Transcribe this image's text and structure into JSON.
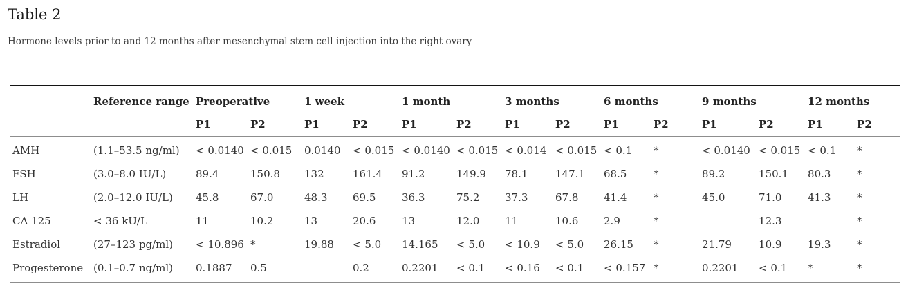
{
  "title": "Table 2",
  "caption": "Hormone levels prior to and 12 months after mesenchymal stem cell injection into the right ovary",
  "table": {
    "reference_header": "Reference range",
    "sub_headers": [
      "P1",
      "P2"
    ],
    "time_groups": [
      "Preoperative",
      "1 week",
      "1 month",
      "3 months",
      "6 months",
      "9 months",
      "12 months"
    ],
    "rows": [
      {
        "name": "AMH",
        "reference": "(1.1–53.5 ng/ml)",
        "values": [
          "< 0.0140",
          "< 0.015",
          "0.0140",
          "< 0.015",
          "< 0.0140",
          "< 0.015",
          "< 0.014",
          "< 0.015",
          "< 0.1",
          "*",
          "< 0.0140",
          "< 0.015",
          "< 0.1",
          "*"
        ]
      },
      {
        "name": "FSH",
        "reference": "(3.0–8.0 IU/L)",
        "values": [
          "89.4",
          "150.8",
          "132",
          "161.4",
          "91.2",
          "149.9",
          "78.1",
          "147.1",
          "68.5",
          "*",
          "89.2",
          "150.1",
          "80.3",
          "*"
        ]
      },
      {
        "name": "LH",
        "reference": "(2.0–12.0 IU/L)",
        "values": [
          "45.8",
          "67.0",
          "48.3",
          "69.5",
          "36.3",
          "75.2",
          "37.3",
          "67.8",
          "41.4",
          "*",
          "45.0",
          "71.0",
          "41.3",
          "*"
        ]
      },
      {
        "name": "CA 125",
        "reference": "< 36 kU/L",
        "values": [
          "11",
          "10.2",
          "13",
          "20.6",
          "13",
          "12.0",
          "11",
          "10.6",
          "2.9",
          "*",
          "",
          "12.3",
          "",
          "*"
        ]
      },
      {
        "name": "Estradiol",
        "reference": "(27–123 pg/ml)",
        "values": [
          "< 10.896",
          "*",
          "19.88",
          "< 5.0",
          "14.165",
          "< 5.0",
          "< 10.9",
          "< 5.0",
          "26.15",
          "*",
          "21.79",
          "10.9",
          "19.3",
          "*"
        ]
      },
      {
        "name": "Progesterone",
        "reference": "(0.1–0.7 ng/ml)",
        "values": [
          "0.1887",
          "0.5",
          "",
          "0.2",
          "0.2201",
          "< 0.1",
          "< 0.16",
          "< 0.1",
          "< 0.157",
          "*",
          "0.2201",
          "< 0.1",
          "*",
          "*"
        ]
      }
    ]
  },
  "colors": {
    "text": "#333333",
    "title": "#1b1b1b",
    "caption": "#3a3a3a",
    "border_top": "#141414",
    "border_rule": "#8d8d8d"
  }
}
